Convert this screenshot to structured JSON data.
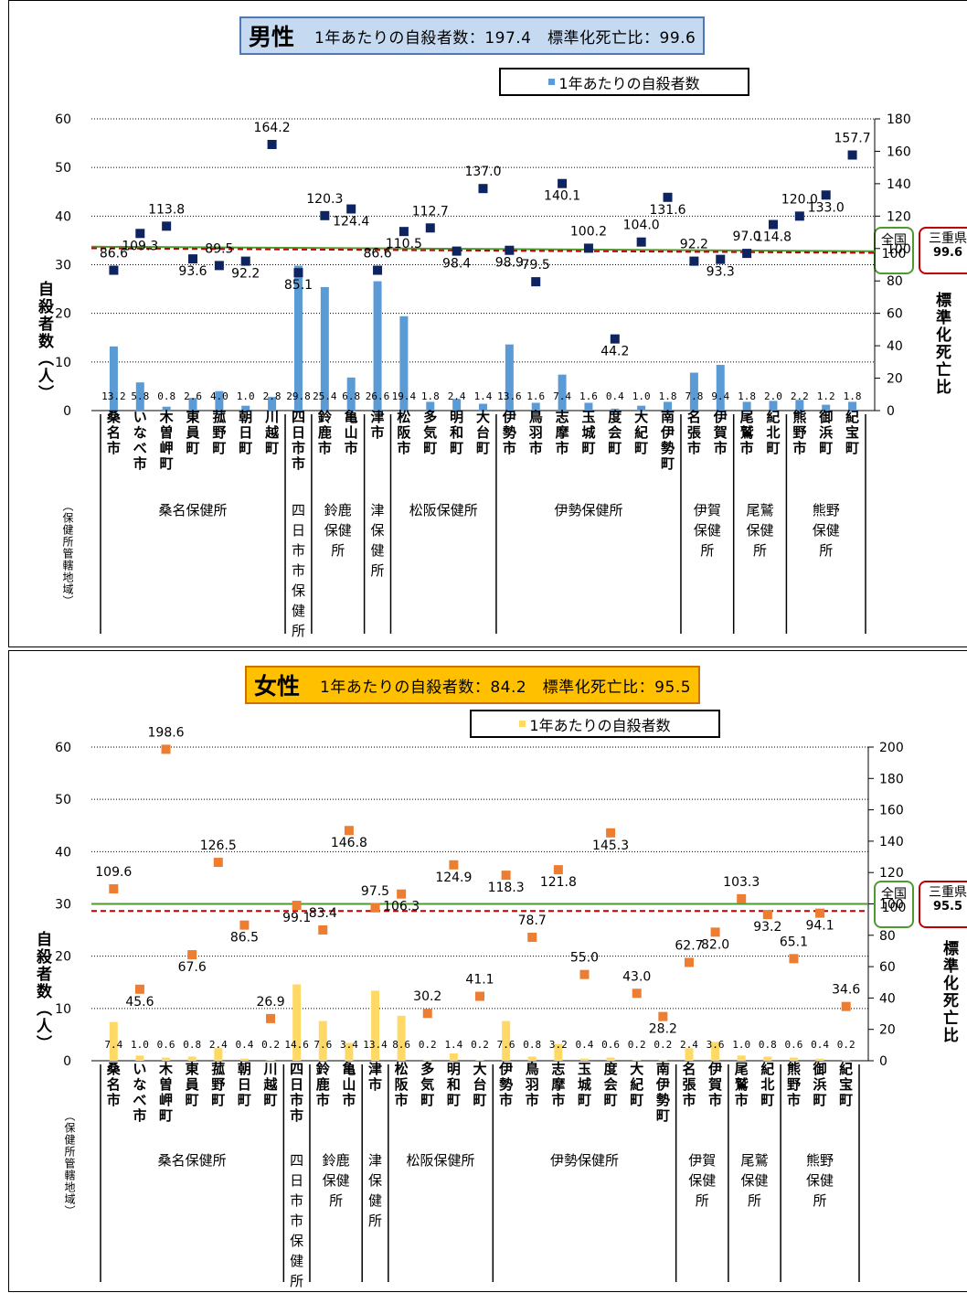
{
  "panels": [
    {
      "id": "male",
      "title": {
        "sex": "男性",
        "subtitle": "1年あたりの自殺者数：197.4　標準化死亡比：99.6"
      },
      "title_bg": "#c5d9f1",
      "legend": "1年あたりの自殺者数",
      "bar_color": "#5b9bd5",
      "point_color": "#0d2461",
      "y_left_label": "自殺者数（人）",
      "y_right_label": "標準化死亡比",
      "y_left_ticks": [
        "0",
        "10",
        "20",
        "30",
        "40",
        "50",
        "60"
      ],
      "y_right_ticks": [
        "0",
        "20",
        "40",
        "60",
        "80",
        "100",
        "120",
        "140",
        "160",
        "180"
      ],
      "ref_national": {
        "label_top": "全国",
        "value": "100"
      },
      "ref_pref": {
        "label": "三重県",
        "value": "99.6"
      }
    },
    {
      "id": "female",
      "title": {
        "sex": "女性",
        "subtitle": "1年あたりの自殺者数：84.2　標準化死亡比：95.5"
      },
      "title_bg": "#ffc000",
      "legend": "1年あたりの自殺者数",
      "bar_color": "#ffd966",
      "point_color": "#ed7d31",
      "y_left_label": "自殺者数（人）",
      "y_right_label": "標準化死亡比",
      "y_left_ticks": [
        "0",
        "10",
        "20",
        "30",
        "40",
        "50",
        "60"
      ],
      "y_right_ticks": [
        "0",
        "20",
        "40",
        "60",
        "80",
        "100",
        "120",
        "140",
        "160",
        "180",
        "200"
      ],
      "ref_national": {
        "label_top": "全国",
        "value": "100"
      },
      "ref_pref": {
        "label": "三重県",
        "value": "95.5"
      }
    }
  ],
  "area_axis_label": "（保健所管轄地域）",
  "chart_data": [
    {
      "type": "bar",
      "title": "男性",
      "categories": [
        "桑名市",
        "いなべ市",
        "木曽岬町",
        "東員町",
        "菰野町",
        "朝日町",
        "川越町",
        "四日市市",
        "鈴鹿市",
        "亀山市",
        "津市",
        "松阪市",
        "多気町",
        "明和町",
        "大台町",
        "伊勢市",
        "鳥羽市",
        "志摩市",
        "玉城町",
        "度会町",
        "大紀町",
        "南伊勢町",
        "名張市",
        "伊賀市",
        "尾鷲市",
        "紀北町",
        "熊野市",
        "御浜町",
        "紀宝町"
      ],
      "groups": [
        {
          "label": "桑名保健所",
          "count": 7
        },
        {
          "label": "四日市市保健所",
          "count": 1
        },
        {
          "label": "鈴鹿保健所",
          "count": 2
        },
        {
          "label": "津保健所",
          "count": 1
        },
        {
          "label": "松阪保健所",
          "count": 4
        },
        {
          "label": "伊勢保健所",
          "count": 7
        },
        {
          "label": "伊賀保健所",
          "count": 2
        },
        {
          "label": "尾鷲保健所",
          "count": 2
        },
        {
          "label": "熊野保健所",
          "count": 3
        }
      ],
      "series": [
        {
          "name": "1年あたりの自殺者数",
          "axis": "left",
          "values": [
            13.2,
            5.8,
            0.8,
            2.6,
            4.0,
            1.0,
            2.8,
            29.8,
            25.4,
            6.8,
            26.6,
            19.4,
            1.8,
            2.4,
            1.4,
            13.6,
            1.6,
            7.4,
            1.6,
            0.4,
            1.0,
            1.8,
            7.8,
            9.4,
            1.8,
            2.0,
            2.2,
            1.2,
            1.8
          ]
        },
        {
          "axis": "right",
          "values": [
            86.6,
            109.3,
            113.8,
            93.6,
            89.5,
            92.2,
            164.2,
            85.1,
            120.3,
            124.4,
            86.6,
            110.5,
            112.7,
            98.4,
            137.0,
            98.9,
            79.5,
            140.1,
            100.2,
            44.2,
            104.0,
            131.6,
            92.2,
            93.3,
            97.0,
            114.8,
            120.0,
            133.0,
            157.7
          ]
        }
      ],
      "reference_lines": [
        {
          "label": "全国",
          "value": 100
        },
        {
          "label": "三重県",
          "value": 99.6
        }
      ],
      "ylim_left": [
        0,
        60
      ],
      "ylim_right": [
        0,
        180
      ],
      "ylabel_left": "自殺者数（人）",
      "ylabel_right": "標準化死亡比"
    },
    {
      "type": "bar",
      "title": "女性",
      "categories": [
        "桑名市",
        "いなべ市",
        "木曽岬町",
        "東員町",
        "菰野町",
        "朝日町",
        "川越町",
        "四日市市",
        "鈴鹿市",
        "亀山市",
        "津市",
        "松阪市",
        "多気町",
        "明和町",
        "大台町",
        "伊勢市",
        "鳥羽市",
        "志摩市",
        "玉城町",
        "度会町",
        "大紀町",
        "南伊勢町",
        "名張市",
        "伊賀市",
        "尾鷲市",
        "紀北町",
        "熊野市",
        "御浜町",
        "紀宝町"
      ],
      "groups": [
        {
          "label": "桑名保健所",
          "count": 7
        },
        {
          "label": "四日市市保健所",
          "count": 1
        },
        {
          "label": "鈴鹿保健所",
          "count": 2
        },
        {
          "label": "津保健所",
          "count": 1
        },
        {
          "label": "松阪保健所",
          "count": 4
        },
        {
          "label": "伊勢保健所",
          "count": 7
        },
        {
          "label": "伊賀保健所",
          "count": 2
        },
        {
          "label": "尾鷲保健所",
          "count": 2
        },
        {
          "label": "熊野保健所",
          "count": 3
        }
      ],
      "series": [
        {
          "name": "1年あたりの自殺者数",
          "axis": "left",
          "values": [
            7.4,
            1.0,
            0.6,
            0.8,
            2.4,
            0.4,
            0.2,
            14.6,
            7.6,
            3.4,
            13.4,
            8.6,
            0.2,
            1.4,
            0.2,
            7.6,
            0.8,
            3.2,
            0.4,
            0.6,
            0.2,
            0.2,
            2.4,
            3.6,
            1.0,
            0.8,
            0.6,
            0.4,
            0.2
          ]
        },
        {
          "axis": "right",
          "values": [
            109.6,
            45.6,
            198.6,
            67.6,
            126.5,
            86.5,
            26.9,
            99.1,
            83.4,
            146.8,
            97.5,
            106.3,
            30.2,
            124.9,
            41.1,
            118.3,
            78.7,
            121.8,
            55.0,
            145.3,
            43.0,
            28.2,
            62.7,
            82.0,
            103.3,
            93.2,
            65.1,
            94.1,
            34.6
          ]
        }
      ],
      "reference_lines": [
        {
          "label": "全国",
          "value": 100
        },
        {
          "label": "三重県",
          "value": 95.5
        }
      ],
      "ylim_left": [
        0,
        60
      ],
      "ylim_right": [
        0,
        200
      ],
      "ylabel_left": "自殺者数（人）",
      "ylabel_right": "標準化死亡比"
    }
  ]
}
